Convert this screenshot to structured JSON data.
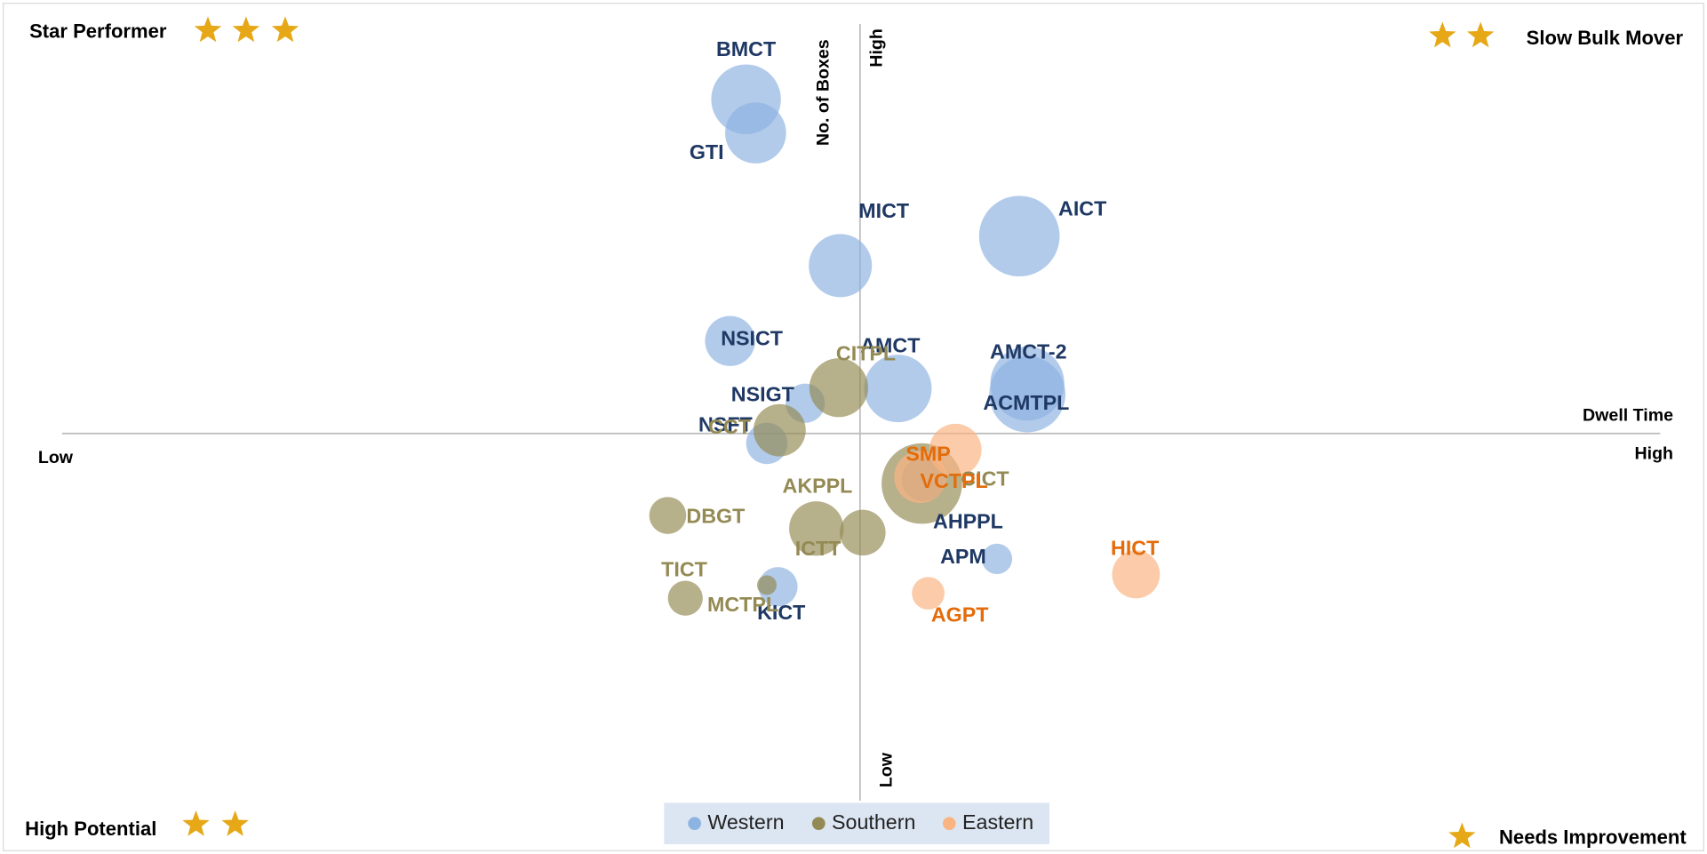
{
  "chart_data": {
    "type": "bubble",
    "quadrant_labels": [
      "Star Performer",
      "Slow Bulk Mover",
      "High Potential",
      "Needs Improvement"
    ],
    "y_label": "No. of Boxes",
    "y_high": "High",
    "y_low": "Low",
    "x_label": "Dwell Time",
    "x_low": "Low",
    "x_high": "High",
    "xlim": [
      0,
      100
    ],
    "ylim": [
      0,
      100
    ],
    "series": [
      {
        "name": "Western",
        "color": "#8db3e2",
        "label_color": "#1f3864",
        "labels": [
          "BMCT",
          "GTI",
          "MICT",
          "AICT",
          "NSICT",
          "AMCT",
          "AMCT-2",
          "ACMTPL",
          "NSIGT",
          "NSFT",
          "KICT",
          "AHPPL",
          "APM"
        ],
        "x": [
          42.8,
          43.4,
          48.7,
          59.9,
          41.8,
          52.3,
          60.4,
          60.4,
          46.5,
          44.1,
          44.8,
          53.9,
          58.5
        ],
        "y": [
          90.8,
          86.7,
          70.5,
          74.1,
          61.3,
          55.5,
          56.1,
          54.8,
          53.7,
          48.8,
          31.3,
          44.4,
          34.7
        ],
        "sizes": [
          32,
          28,
          29,
          37,
          23,
          31,
          34,
          35,
          18,
          19,
          18,
          20,
          14
        ]
      },
      {
        "name": "Southern",
        "color": "#948a54",
        "label_color": "#948a54",
        "labels": [
          "CITPL",
          "CCT",
          "AKPPL",
          "ICTT",
          "DBGT",
          "TICT",
          "MCTPL",
          "CICT"
        ],
        "x": [
          48.6,
          44.9,
          47.2,
          50.1,
          37.9,
          39.0,
          44.1,
          53.8
        ],
        "y": [
          55.6,
          50.4,
          38.4,
          37.9,
          40.0,
          29.9,
          31.5,
          43.9
        ],
        "sizes": [
          27,
          24,
          25,
          21,
          17,
          16,
          9,
          37
        ]
      },
      {
        "name": "Eastern",
        "color": "#fab481",
        "label_color": "#e46c0a",
        "labels": [
          "SMP",
          "VCTPL",
          "HICT",
          "AGPT"
        ],
        "x": [
          55.9,
          53.7,
          67.2,
          54.2
        ],
        "y": [
          48.0,
          44.7,
          32.8,
          30.5
        ],
        "sizes": [
          24,
          24,
          22,
          15
        ]
      }
    ]
  }
}
